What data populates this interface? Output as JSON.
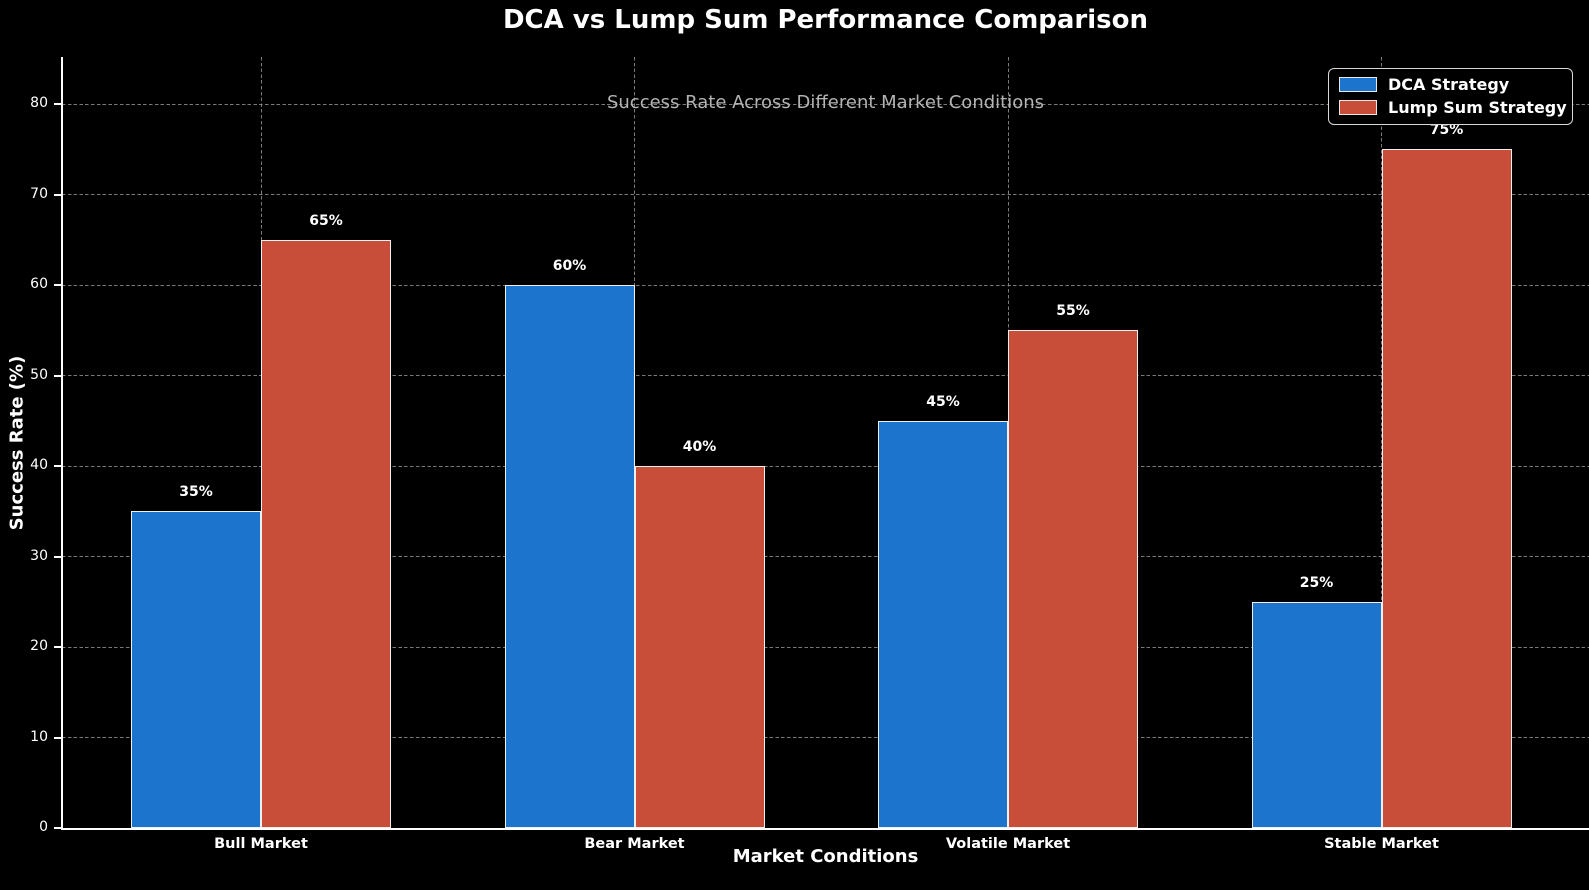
{
  "chart_data": {
    "type": "bar",
    "title": "DCA vs Lump Sum Performance Comparison",
    "subtitle": "Success Rate Across Different Market Conditions",
    "xlabel": "Market Conditions",
    "ylabel": "Success Rate (%)",
    "categories": [
      "Bull Market",
      "Bear Market",
      "Volatile Market",
      "Stable Market"
    ],
    "series": [
      {
        "name": "DCA Strategy",
        "color": "#1C74CC",
        "values": [
          35,
          60,
          45,
          25
        ],
        "labels": [
          "35%",
          "60%",
          "45%",
          "25%"
        ]
      },
      {
        "name": "Lump Sum Strategy",
        "color": "#C84E39",
        "values": [
          65,
          40,
          55,
          75
        ],
        "labels": [
          "65%",
          "40%",
          "55%",
          "75%"
        ]
      }
    ],
    "yticks": [
      0,
      10,
      20,
      30,
      40,
      50,
      60,
      70,
      80
    ],
    "ylim": [
      0,
      85.3
    ],
    "grid": true,
    "legend_position": "upper right",
    "colors": {
      "background": "#000000",
      "text": "#ffffff",
      "subtitle_text": "#b3b3b3",
      "grid": "#8f8f8f",
      "bar_edge": "#f0f0f0",
      "axis_spine": "#ffffff"
    }
  }
}
